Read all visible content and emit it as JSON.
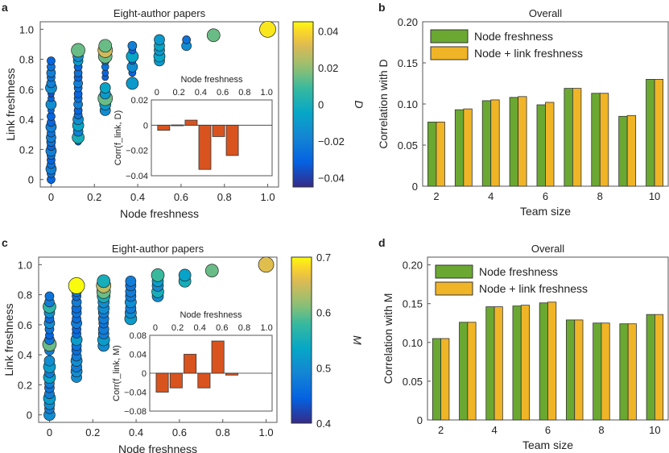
{
  "chart_data": [
    {
      "panel": "a",
      "type": "scatter",
      "title": "Eight-author papers",
      "xlabel": "Node freshness",
      "ylabel": "Link freshness",
      "xlim": [
        -0.05,
        1.05
      ],
      "ylim": [
        -0.05,
        1.05
      ],
      "xticks": [
        "0",
        "0.2",
        "0.4",
        "0.6",
        "0.8",
        "1.0"
      ],
      "yticks": [
        "0",
        "0.2",
        "0.4",
        "0.6",
        "0.8",
        "1.0"
      ],
      "colorbar": {
        "label": "D",
        "range": [
          -0.045,
          0.045
        ],
        "ticks": [
          "0.04",
          "0.02",
          "0",
          "−0.02",
          "−0.04"
        ]
      },
      "points": [
        {
          "x": 0,
          "y": 0.0,
          "c": -0.03,
          "s": 1
        },
        {
          "x": 0,
          "y": 0.04,
          "c": -0.025,
          "s": 1
        },
        {
          "x": 0,
          "y": 0.07,
          "c": -0.02,
          "s": 1.3
        },
        {
          "x": 0,
          "y": 0.1,
          "c": -0.025,
          "s": 1
        },
        {
          "x": 0,
          "y": 0.13,
          "c": -0.03,
          "s": 1
        },
        {
          "x": 0,
          "y": 0.16,
          "c": -0.025,
          "s": 1
        },
        {
          "x": 0,
          "y": 0.19,
          "c": -0.02,
          "s": 1.3
        },
        {
          "x": 0,
          "y": 0.22,
          "c": -0.03,
          "s": 1
        },
        {
          "x": 0,
          "y": 0.25,
          "c": -0.025,
          "s": 1.1
        },
        {
          "x": 0,
          "y": 0.28,
          "c": -0.02,
          "s": 1.2
        },
        {
          "x": 0,
          "y": 0.31,
          "c": -0.025,
          "s": 1
        },
        {
          "x": 0,
          "y": 0.35,
          "c": -0.02,
          "s": 1.3
        },
        {
          "x": 0,
          "y": 0.38,
          "c": -0.03,
          "s": 1
        },
        {
          "x": 0,
          "y": 0.42,
          "c": -0.03,
          "s": 1
        },
        {
          "x": 0,
          "y": 0.46,
          "c": -0.03,
          "s": 0.8
        },
        {
          "x": 0,
          "y": 0.5,
          "c": -0.015,
          "s": 1.3
        },
        {
          "x": 0,
          "y": 0.54,
          "c": -0.03,
          "s": 0.8
        },
        {
          "x": 0,
          "y": 0.57,
          "c": -0.035,
          "s": 0.8
        },
        {
          "x": 0,
          "y": 0.61,
          "c": -0.015,
          "s": 1.4
        },
        {
          "x": 0,
          "y": 0.64,
          "c": -0.02,
          "s": 1.1
        },
        {
          "x": 0,
          "y": 0.68,
          "c": -0.025,
          "s": 1
        },
        {
          "x": 0,
          "y": 0.71,
          "c": -0.02,
          "s": 1.1
        },
        {
          "x": 0,
          "y": 0.75,
          "c": -0.025,
          "s": 1
        },
        {
          "x": 0,
          "y": 0.79,
          "c": -0.03,
          "s": 1
        },
        {
          "x": 0.125,
          "y": 0.25,
          "c": -0.03,
          "s": 0.8
        },
        {
          "x": 0.125,
          "y": 0.28,
          "c": 0.0,
          "s": 1.5
        },
        {
          "x": 0.125,
          "y": 0.32,
          "c": -0.02,
          "s": 1.2
        },
        {
          "x": 0.125,
          "y": 0.36,
          "c": -0.005,
          "s": 1.4
        },
        {
          "x": 0.125,
          "y": 0.4,
          "c": -0.015,
          "s": 1.3
        },
        {
          "x": 0.125,
          "y": 0.43,
          "c": -0.025,
          "s": 1
        },
        {
          "x": 0.125,
          "y": 0.46,
          "c": -0.03,
          "s": 1
        },
        {
          "x": 0.125,
          "y": 0.5,
          "c": -0.02,
          "s": 1.1
        },
        {
          "x": 0.125,
          "y": 0.54,
          "c": -0.025,
          "s": 1
        },
        {
          "x": 0.125,
          "y": 0.57,
          "c": -0.03,
          "s": 1
        },
        {
          "x": 0.125,
          "y": 0.61,
          "c": -0.025,
          "s": 1
        },
        {
          "x": 0.125,
          "y": 0.64,
          "c": -0.02,
          "s": 1.1
        },
        {
          "x": 0.125,
          "y": 0.68,
          "c": -0.03,
          "s": 1
        },
        {
          "x": 0.125,
          "y": 0.71,
          "c": -0.025,
          "s": 1
        },
        {
          "x": 0.125,
          "y": 0.75,
          "c": -0.03,
          "s": 1
        },
        {
          "x": 0.125,
          "y": 0.79,
          "c": -0.01,
          "s": 1.2
        },
        {
          "x": 0.125,
          "y": 0.82,
          "c": -0.015,
          "s": 1.3
        },
        {
          "x": 0.125,
          "y": 0.86,
          "c": 0.015,
          "s": 1.7
        },
        {
          "x": 0.25,
          "y": 0.46,
          "c": -0.015,
          "s": 1.3
        },
        {
          "x": 0.25,
          "y": 0.5,
          "c": -0.01,
          "s": 1.4
        },
        {
          "x": 0.25,
          "y": 0.54,
          "c": 0.015,
          "s": 1.8
        },
        {
          "x": 0.25,
          "y": 0.57,
          "c": -0.01,
          "s": 1.3
        },
        {
          "x": 0.25,
          "y": 0.61,
          "c": -0.005,
          "s": 1.3
        },
        {
          "x": 0.25,
          "y": 0.68,
          "c": -0.03,
          "s": 0.8
        },
        {
          "x": 0.25,
          "y": 0.71,
          "c": -0.03,
          "s": 0.8
        },
        {
          "x": 0.25,
          "y": 0.75,
          "c": -0.025,
          "s": 0.9
        },
        {
          "x": 0.25,
          "y": 0.79,
          "c": -0.025,
          "s": 1
        },
        {
          "x": 0.25,
          "y": 0.82,
          "c": 0.015,
          "s": 1.7
        },
        {
          "x": 0.25,
          "y": 0.86,
          "c": 0.03,
          "s": 1.8
        },
        {
          "x": 0.25,
          "y": 0.89,
          "c": 0.015,
          "s": 1.6
        },
        {
          "x": 0.375,
          "y": 0.64,
          "c": -0.01,
          "s": 1.5
        },
        {
          "x": 0.375,
          "y": 0.71,
          "c": -0.03,
          "s": 0.9
        },
        {
          "x": 0.375,
          "y": 0.75,
          "c": -0.015,
          "s": 1.3
        },
        {
          "x": 0.375,
          "y": 0.79,
          "c": -0.03,
          "s": 0.9
        },
        {
          "x": 0.375,
          "y": 0.82,
          "c": -0.005,
          "s": 1.5
        },
        {
          "x": 0.375,
          "y": 0.86,
          "c": -0.03,
          "s": 0.9
        },
        {
          "x": 0.375,
          "y": 0.89,
          "c": -0.02,
          "s": 1.1
        },
        {
          "x": 0.5,
          "y": 0.79,
          "c": -0.01,
          "s": 1.3
        },
        {
          "x": 0.5,
          "y": 0.82,
          "c": -0.005,
          "s": 1.4
        },
        {
          "x": 0.5,
          "y": 0.86,
          "c": -0.01,
          "s": 1.3
        },
        {
          "x": 0.5,
          "y": 0.89,
          "c": -0.005,
          "s": 1.3
        },
        {
          "x": 0.5,
          "y": 0.93,
          "c": -0.01,
          "s": 1.3
        },
        {
          "x": 0.625,
          "y": 0.89,
          "c": -0.015,
          "s": 1.2
        },
        {
          "x": 0.625,
          "y": 0.93,
          "c": -0.025,
          "s": 1
        },
        {
          "x": 0.75,
          "y": 0.96,
          "c": 0.015,
          "s": 1.6
        },
        {
          "x": 1.0,
          "y": 1.0,
          "c": 0.042,
          "s": 2.0
        }
      ],
      "inset": {
        "type": "bar",
        "xlabel": "Node freshness",
        "ylabel": "Corr(f_link, D)",
        "xlim": [
          -0.05,
          1.05
        ],
        "ylim": [
          -0.04,
          0.02
        ],
        "xticks": [
          "0",
          "0.2",
          "0.4",
          "0.6",
          "0.8",
          "1.0"
        ],
        "yticks": [
          "0.02",
          "0",
          "−0.02",
          "−0.04"
        ],
        "x": [
          0,
          0.125,
          0.25,
          0.375,
          0.5,
          0.625
        ],
        "values": [
          -0.004,
          0.0002,
          0.004,
          -0.035,
          -0.009,
          -0.024
        ],
        "color": "#d9531e"
      }
    },
    {
      "panel": "b",
      "type": "bar",
      "title": "Overall",
      "xlabel": "Team size",
      "ylabel": "Correlation with D",
      "ylim": [
        0,
        0.2
      ],
      "yticks": [
        "0",
        "0.05",
        "0.10",
        "0.15",
        "0.20"
      ],
      "xticks": [
        "2",
        "4",
        "6",
        "8",
        "10"
      ],
      "categories": [
        2,
        3,
        4,
        5,
        6,
        7,
        8,
        9,
        10
      ],
      "legend_position": "top-left",
      "series": [
        {
          "name": "Node freshness",
          "color": "#6aa832",
          "values": [
            0.078,
            0.093,
            0.104,
            0.108,
            0.099,
            0.119,
            0.113,
            0.085,
            0.13
          ]
        },
        {
          "name": "Node + link freshness",
          "color": "#f0b427",
          "values": [
            0.078,
            0.094,
            0.105,
            0.109,
            0.102,
            0.119,
            0.113,
            0.086,
            0.13
          ]
        }
      ]
    },
    {
      "panel": "c",
      "type": "scatter",
      "title": "Eight-author papers",
      "xlabel": "Node freshness",
      "ylabel": "Link freshness",
      "xlim": [
        -0.05,
        1.05
      ],
      "ylim": [
        -0.05,
        1.05
      ],
      "xticks": [
        "0",
        "0.2",
        "0.4",
        "0.6",
        "0.8",
        "1.0"
      ],
      "yticks": [
        "0",
        "0.2",
        "0.4",
        "0.6",
        "0.8",
        "1.0"
      ],
      "colorbar": {
        "label": "M",
        "range": [
          0.4,
          0.7
        ],
        "ticks": [
          "0.7",
          "0.6",
          "0.5",
          "0.4"
        ]
      },
      "points": [
        {
          "x": 0,
          "y": 0.0,
          "c": 0.5,
          "s": 1.4
        },
        {
          "x": 0,
          "y": 0.04,
          "c": 0.48,
          "s": 1.2
        },
        {
          "x": 0,
          "y": 0.07,
          "c": 0.5,
          "s": 1.3
        },
        {
          "x": 0,
          "y": 0.11,
          "c": 0.52,
          "s": 1.5
        },
        {
          "x": 0,
          "y": 0.14,
          "c": 0.48,
          "s": 1.2
        },
        {
          "x": 0,
          "y": 0.18,
          "c": 0.47,
          "s": 1.2
        },
        {
          "x": 0,
          "y": 0.21,
          "c": 0.48,
          "s": 1.2
        },
        {
          "x": 0,
          "y": 0.25,
          "c": 0.53,
          "s": 1.5
        },
        {
          "x": 0,
          "y": 0.28,
          "c": 0.48,
          "s": 1.2
        },
        {
          "x": 0,
          "y": 0.32,
          "c": 0.52,
          "s": 1.5
        },
        {
          "x": 0,
          "y": 0.36,
          "c": 0.5,
          "s": 1.3
        },
        {
          "x": 0,
          "y": 0.43,
          "c": 0.48,
          "s": 1.2
        },
        {
          "x": 0,
          "y": 0.47,
          "c": 0.6,
          "s": 1.7
        },
        {
          "x": 0,
          "y": 0.5,
          "c": 0.47,
          "s": 1.2
        },
        {
          "x": 0,
          "y": 0.53,
          "c": 0.45,
          "s": 1.0
        },
        {
          "x": 0,
          "y": 0.57,
          "c": 0.47,
          "s": 1.1
        },
        {
          "x": 0,
          "y": 0.61,
          "c": 0.5,
          "s": 1.3
        },
        {
          "x": 0,
          "y": 0.64,
          "c": 0.46,
          "s": 1.1
        },
        {
          "x": 0,
          "y": 0.68,
          "c": 0.5,
          "s": 1.3
        },
        {
          "x": 0,
          "y": 0.72,
          "c": 0.57,
          "s": 1.6
        },
        {
          "x": 0,
          "y": 0.75,
          "c": 0.48,
          "s": 1.2
        },
        {
          "x": 0,
          "y": 0.79,
          "c": 0.47,
          "s": 1.1
        },
        {
          "x": 0.125,
          "y": 0.25,
          "c": 0.5,
          "s": 1.3
        },
        {
          "x": 0.125,
          "y": 0.29,
          "c": 0.5,
          "s": 1.4
        },
        {
          "x": 0.125,
          "y": 0.32,
          "c": 0.48,
          "s": 1.3
        },
        {
          "x": 0.125,
          "y": 0.36,
          "c": 0.5,
          "s": 1.4
        },
        {
          "x": 0.125,
          "y": 0.39,
          "c": 0.48,
          "s": 1.2
        },
        {
          "x": 0.125,
          "y": 0.43,
          "c": 0.46,
          "s": 1.2
        },
        {
          "x": 0.125,
          "y": 0.46,
          "c": 0.47,
          "s": 1.2
        },
        {
          "x": 0.125,
          "y": 0.5,
          "c": 0.52,
          "s": 1.4
        },
        {
          "x": 0.125,
          "y": 0.54,
          "c": 0.46,
          "s": 1.1
        },
        {
          "x": 0.125,
          "y": 0.57,
          "c": 0.45,
          "s": 1.1
        },
        {
          "x": 0.125,
          "y": 0.61,
          "c": 0.48,
          "s": 1.3
        },
        {
          "x": 0.125,
          "y": 0.64,
          "c": 0.46,
          "s": 1.1
        },
        {
          "x": 0.125,
          "y": 0.68,
          "c": 0.47,
          "s": 1.2
        },
        {
          "x": 0.125,
          "y": 0.71,
          "c": 0.46,
          "s": 1.2
        },
        {
          "x": 0.125,
          "y": 0.75,
          "c": 0.48,
          "s": 1.2
        },
        {
          "x": 0.125,
          "y": 0.79,
          "c": 0.46,
          "s": 1.1
        },
        {
          "x": 0.125,
          "y": 0.82,
          "c": 0.48,
          "s": 1.2
        },
        {
          "x": 0.125,
          "y": 0.86,
          "c": 0.7,
          "s": 2.0
        },
        {
          "x": 0.25,
          "y": 0.46,
          "c": 0.5,
          "s": 1.4
        },
        {
          "x": 0.25,
          "y": 0.5,
          "c": 0.52,
          "s": 1.5
        },
        {
          "x": 0.25,
          "y": 0.54,
          "c": 0.48,
          "s": 1.3
        },
        {
          "x": 0.25,
          "y": 0.57,
          "c": 0.48,
          "s": 1.3
        },
        {
          "x": 0.25,
          "y": 0.61,
          "c": 0.47,
          "s": 1.2
        },
        {
          "x": 0.25,
          "y": 0.64,
          "c": 0.48,
          "s": 1.3
        },
        {
          "x": 0.25,
          "y": 0.68,
          "c": 0.48,
          "s": 1.3
        },
        {
          "x": 0.25,
          "y": 0.71,
          "c": 0.5,
          "s": 1.4
        },
        {
          "x": 0.25,
          "y": 0.75,
          "c": 0.5,
          "s": 1.4
        },
        {
          "x": 0.25,
          "y": 0.79,
          "c": 0.55,
          "s": 1.6
        },
        {
          "x": 0.25,
          "y": 0.82,
          "c": 0.6,
          "s": 1.7
        },
        {
          "x": 0.25,
          "y": 0.86,
          "c": 0.64,
          "s": 1.8
        },
        {
          "x": 0.25,
          "y": 0.89,
          "c": 0.55,
          "s": 1.6
        },
        {
          "x": 0.375,
          "y": 0.64,
          "c": 0.52,
          "s": 1.5
        },
        {
          "x": 0.375,
          "y": 0.68,
          "c": 0.5,
          "s": 1.4
        },
        {
          "x": 0.375,
          "y": 0.71,
          "c": 0.48,
          "s": 1.3
        },
        {
          "x": 0.375,
          "y": 0.75,
          "c": 0.5,
          "s": 1.4
        },
        {
          "x": 0.375,
          "y": 0.79,
          "c": 0.48,
          "s": 1.3
        },
        {
          "x": 0.375,
          "y": 0.82,
          "c": 0.48,
          "s": 1.3
        },
        {
          "x": 0.375,
          "y": 0.86,
          "c": 0.47,
          "s": 1.3
        },
        {
          "x": 0.375,
          "y": 0.89,
          "c": 0.48,
          "s": 1.3
        },
        {
          "x": 0.5,
          "y": 0.79,
          "c": 0.5,
          "s": 1.4
        },
        {
          "x": 0.5,
          "y": 0.82,
          "c": 0.55,
          "s": 1.5
        },
        {
          "x": 0.5,
          "y": 0.86,
          "c": 0.5,
          "s": 1.4
        },
        {
          "x": 0.5,
          "y": 0.89,
          "c": 0.52,
          "s": 1.4
        },
        {
          "x": 0.5,
          "y": 0.93,
          "c": 0.58,
          "s": 1.6
        },
        {
          "x": 0.625,
          "y": 0.89,
          "c": 0.55,
          "s": 1.5
        },
        {
          "x": 0.625,
          "y": 0.93,
          "c": 0.53,
          "s": 1.5
        },
        {
          "x": 0.75,
          "y": 0.96,
          "c": 0.6,
          "s": 1.6
        },
        {
          "x": 1.0,
          "y": 1.0,
          "c": 0.66,
          "s": 1.9
        }
      ],
      "inset": {
        "type": "bar",
        "xlabel": "Node freshness",
        "ylabel": "Corr(f_link, M)",
        "xlim": [
          -0.05,
          1.05
        ],
        "ylim": [
          -0.08,
          0.08
        ],
        "xticks": [
          "0",
          "0.2",
          "0.4",
          "0.6",
          "0.8",
          "1.0"
        ],
        "yticks": [
          "0.08",
          "0.04",
          "0",
          "−0.04",
          "−0.08"
        ],
        "x": [
          0,
          0.125,
          0.25,
          0.375,
          0.5,
          0.625
        ],
        "values": [
          -0.04,
          -0.031,
          0.04,
          -0.031,
          0.068,
          -0.004
        ],
        "color": "#d9531e"
      }
    },
    {
      "panel": "d",
      "type": "bar",
      "title": "Overall",
      "xlabel": "Team size",
      "ylabel": "Correlation with M",
      "ylim": [
        0,
        0.21
      ],
      "yticks": [
        "0",
        "0.05",
        "0.10",
        "0.15",
        "0.20"
      ],
      "xticks": [
        "2",
        "4",
        "6",
        "8",
        "10"
      ],
      "categories": [
        2,
        3,
        4,
        5,
        6,
        7,
        8,
        9,
        10
      ],
      "legend_position": "top-left",
      "series": [
        {
          "name": "Node freshness",
          "color": "#6aa832",
          "values": [
            0.105,
            0.126,
            0.146,
            0.147,
            0.151,
            0.129,
            0.125,
            0.124,
            0.136
          ]
        },
        {
          "name": "Node + link freshness",
          "color": "#f0b427",
          "values": [
            0.105,
            0.126,
            0.146,
            0.148,
            0.152,
            0.129,
            0.125,
            0.124,
            0.136
          ]
        }
      ]
    }
  ],
  "panel_labels": [
    "a",
    "b",
    "c",
    "d"
  ]
}
